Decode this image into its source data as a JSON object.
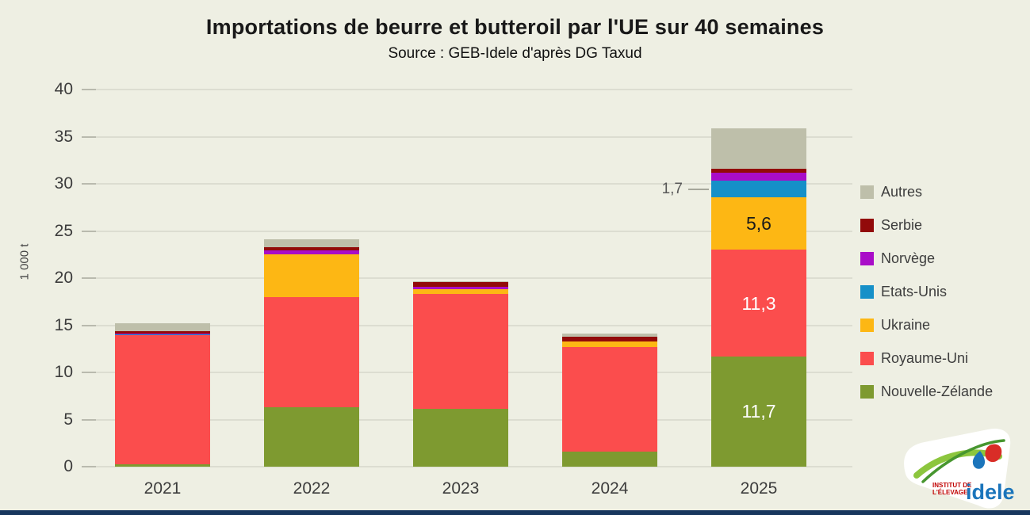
{
  "page": {
    "background": "#EEEFE3",
    "footer_bar_color": "#17365D"
  },
  "title": "Importations de beurre et butteroil par l'UE sur 40 semaines",
  "subtitle": "Source : GEB-Idele d'après DG Taxud",
  "chart_data": {
    "type": "bar",
    "stacked": true,
    "title": "Importations de beurre et butteroil par l'UE sur 40 semaines",
    "subtitle": "Source : GEB-Idele d'après DG Taxud",
    "xlabel": "",
    "ylabel": "1 000 t",
    "ylim": [
      0,
      40
    ],
    "yticks": [
      0,
      5,
      10,
      15,
      20,
      25,
      30,
      35,
      40
    ],
    "grid": true,
    "legend_position": "right",
    "categories": [
      "2021",
      "2022",
      "2023",
      "2024",
      "2025"
    ],
    "series": [
      {
        "name": "Nouvelle-Zélande",
        "color": "#7E9A30",
        "values": [
          0.25,
          6.3,
          6.15,
          1.6,
          11.7
        ]
      },
      {
        "name": "Royaume-Uni",
        "color": "#FB4D4D",
        "values": [
          13.7,
          11.7,
          12.2,
          11.1,
          11.3
        ]
      },
      {
        "name": "Ukraine",
        "color": "#FDB714",
        "values": [
          0.0,
          4.5,
          0.45,
          0.6,
          5.6
        ]
      },
      {
        "name": "Etats-Unis",
        "color": "#1690C8",
        "values": [
          0.1,
          0.0,
          0.0,
          0.0,
          1.7
        ]
      },
      {
        "name": "Norvège",
        "color": "#A90DC8",
        "values": [
          0.05,
          0.4,
          0.3,
          0.0,
          0.9
        ]
      },
      {
        "name": "Serbie",
        "color": "#920A0A",
        "values": [
          0.3,
          0.35,
          0.45,
          0.5,
          0.4
        ]
      },
      {
        "name": "Autres",
        "color": "#BEBFAA",
        "values": [
          0.85,
          0.85,
          0.15,
          0.35,
          4.3
        ]
      }
    ],
    "bar_labels": [
      {
        "category": "2025",
        "series": "Ukraine",
        "text": "5,6",
        "color": "#1A1A1A"
      },
      {
        "category": "2025",
        "series": "Royaume-Uni",
        "text": "11,3",
        "color": "#FFFFFF"
      },
      {
        "category": "2025",
        "series": "Nouvelle-Zélande",
        "text": "11,7",
        "color": "#FFFFFF"
      }
    ],
    "annotation": {
      "text": "1,7",
      "target_category": "2025",
      "target_series": "Etats-Unis"
    }
  },
  "legend": {
    "items": [
      {
        "label": "Autres",
        "color": "#BEBFAA"
      },
      {
        "label": "Serbie",
        "color": "#920A0A"
      },
      {
        "label": "Norvège",
        "color": "#A90DC8"
      },
      {
        "label": "Etats-Unis",
        "color": "#1690C8"
      },
      {
        "label": "Ukraine",
        "color": "#FDB714"
      },
      {
        "label": "Royaume-Uni",
        "color": "#FB4D4D"
      },
      {
        "label": "Nouvelle-Zélande",
        "color": "#7E9A30"
      }
    ]
  },
  "logo": {
    "line1": "INSTITUT DE",
    "line2": "L'ÉLEVAGE",
    "brand": "idele"
  }
}
